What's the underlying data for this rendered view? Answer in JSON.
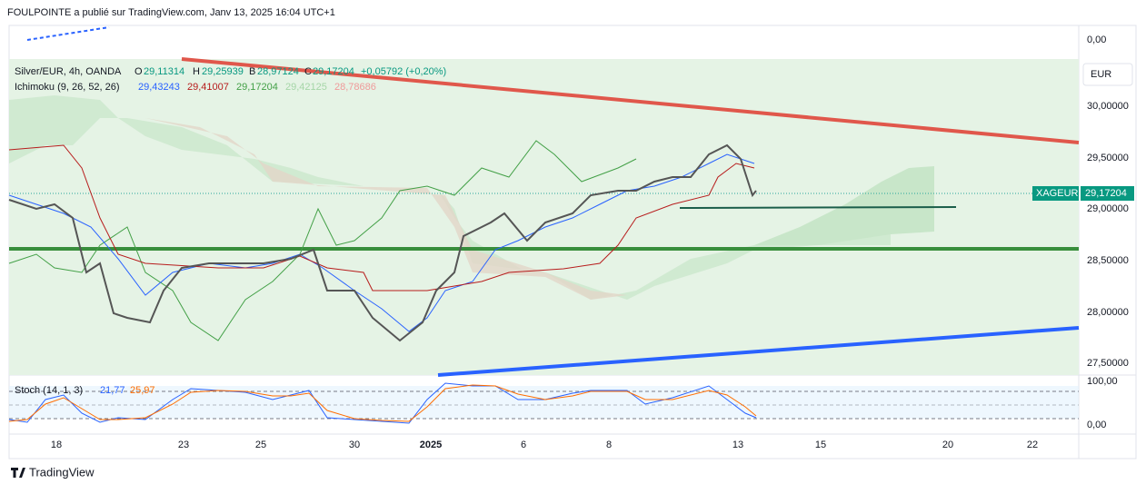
{
  "header": {
    "title": "FOULPOINTE a publié sur TradingView.com, Janv 13, 2025 16:04 UTC+1"
  },
  "legend": {
    "symbol": "Silver/EUR, 4h, OANDA",
    "o_label": "O",
    "o": "29,11314",
    "h_label": "H",
    "h": "29,25939",
    "b_label": "B",
    "b": "28,97124",
    "c_label": "C",
    "c": "29,17204",
    "change": "+0,05792 (+0,20%)"
  },
  "ichimoku": {
    "name": "Ichimoku (9, 26, 52, 26)",
    "values": [
      "29,43243",
      "29,41007",
      "29,17204",
      "29,42125",
      "28,78686"
    ]
  },
  "price_axis": {
    "currency": "EUR",
    "top": "0,00",
    "ticks": [
      "30,00000",
      "29,50000",
      "29,00000",
      "28,50000",
      "28,00000",
      "27,50000"
    ],
    "badge_symbol": "XAGEUR",
    "badge_price": "29,17204"
  },
  "stoch": {
    "name": "Stoch (14, 1, 3)",
    "values": [
      "21,77",
      "25,97"
    ],
    "ticks": [
      "100,00",
      "0,00"
    ]
  },
  "dates": [
    "18",
    "23",
    "25",
    "30",
    "2025",
    "6",
    "8",
    "13",
    "15",
    "20",
    "22"
  ],
  "footer": {
    "brand": "TradingView"
  }
}
